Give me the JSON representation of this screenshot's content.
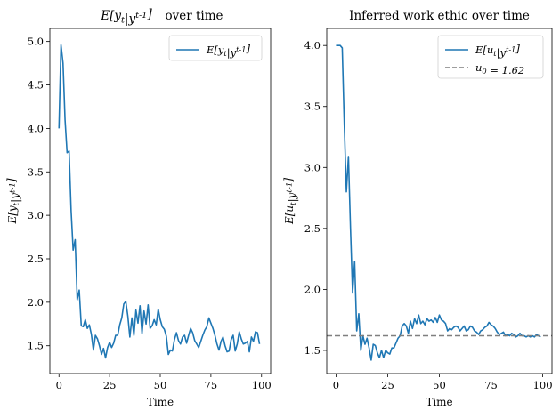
{
  "colors": {
    "series": "#1f77b4",
    "reference": "#7f7f7f",
    "axes": "#000000",
    "legend_edge": "#cccccc"
  },
  "chart_data": [
    {
      "type": "line",
      "title": "E[y_t|y^{t-1}] over time",
      "xlabel": "Time",
      "ylabel": "E[y_t|y^{t-1}]",
      "xlim": [
        -4.5,
        104.5
      ],
      "ylim": [
        1.18,
        5.15
      ],
      "xticks": [
        0,
        25,
        50,
        75,
        100
      ],
      "yticks": [
        1.5,
        2.0,
        2.5,
        3.0,
        3.5,
        4.0,
        4.5,
        5.0
      ],
      "ytick_labels": [
        "1.5",
        "2.0",
        "2.5",
        "3.0",
        "3.5",
        "4.0",
        "4.5",
        "5.0"
      ],
      "legend": "top-right",
      "series": [
        {
          "name": "E[y_t|y^{t-1}]",
          "x": [
            0,
            1,
            2,
            3,
            4,
            5,
            6,
            7,
            8,
            9,
            10,
            11,
            12,
            13,
            14,
            15,
            16,
            17,
            18,
            19,
            20,
            21,
            22,
            23,
            24,
            25,
            26,
            27,
            28,
            29,
            30,
            31,
            32,
            33,
            34,
            35,
            36,
            37,
            38,
            39,
            40,
            41,
            42,
            43,
            44,
            45,
            46,
            47,
            48,
            49,
            50,
            51,
            52,
            53,
            54,
            55,
            56,
            57,
            58,
            59,
            60,
            61,
            62,
            63,
            64,
            65,
            66,
            67,
            68,
            69,
            70,
            71,
            72,
            73,
            74,
            75,
            76,
            77,
            78,
            79,
            80,
            81,
            82,
            83,
            84,
            85,
            86,
            87,
            88,
            89,
            90,
            91,
            92,
            93,
            94,
            95,
            96,
            97,
            98,
            99
          ],
          "values": [
            4.0,
            4.96,
            4.75,
            4.1,
            3.72,
            3.74,
            3.05,
            2.6,
            2.72,
            2.03,
            2.14,
            1.73,
            1.72,
            1.8,
            1.7,
            1.74,
            1.63,
            1.45,
            1.62,
            1.58,
            1.5,
            1.4,
            1.47,
            1.36,
            1.48,
            1.54,
            1.48,
            1.53,
            1.62,
            1.62,
            1.74,
            1.82,
            1.98,
            2.01,
            1.84,
            1.6,
            1.82,
            1.62,
            1.91,
            1.76,
            1.96,
            1.64,
            1.9,
            1.75,
            1.97,
            1.7,
            1.73,
            1.8,
            1.74,
            1.92,
            1.8,
            1.72,
            1.69,
            1.61,
            1.4,
            1.45,
            1.44,
            1.57,
            1.65,
            1.56,
            1.52,
            1.6,
            1.62,
            1.53,
            1.62,
            1.7,
            1.65,
            1.56,
            1.52,
            1.48,
            1.55,
            1.62,
            1.68,
            1.72,
            1.82,
            1.76,
            1.7,
            1.62,
            1.52,
            1.45,
            1.55,
            1.6,
            1.5,
            1.43,
            1.44,
            1.57,
            1.62,
            1.44,
            1.52,
            1.66,
            1.58,
            1.52,
            1.53,
            1.55,
            1.43,
            1.6,
            1.55,
            1.66,
            1.65,
            1.52
          ]
        }
      ]
    },
    {
      "type": "line",
      "title": "Inferred work ethic over time",
      "xlabel": "Time",
      "ylabel": "E[u_t|y^{t-1}]",
      "xlim": [
        -4.5,
        104.5
      ],
      "ylim": [
        1.31,
        4.14
      ],
      "xticks": [
        0,
        25,
        50,
        75,
        100
      ],
      "yticks": [
        1.5,
        2.0,
        2.5,
        3.0,
        3.5,
        4.0
      ],
      "ytick_labels": [
        "1.5",
        "2.0",
        "2.5",
        "3.0",
        "3.5",
        "4.0"
      ],
      "legend": "top-right",
      "series": [
        {
          "name": "E[u_t|y^{t-1}]",
          "x": [
            0,
            1,
            2,
            3,
            4,
            5,
            6,
            7,
            8,
            9,
            10,
            11,
            12,
            13,
            14,
            15,
            16,
            17,
            18,
            19,
            20,
            21,
            22,
            23,
            24,
            25,
            26,
            27,
            28,
            29,
            30,
            31,
            32,
            33,
            34,
            35,
            36,
            37,
            38,
            39,
            40,
            41,
            42,
            43,
            44,
            45,
            46,
            47,
            48,
            49,
            50,
            51,
            52,
            53,
            54,
            55,
            56,
            57,
            58,
            59,
            60,
            61,
            62,
            63,
            64,
            65,
            66,
            67,
            68,
            69,
            70,
            71,
            72,
            73,
            74,
            75,
            76,
            77,
            78,
            79,
            80,
            81,
            82,
            83,
            84,
            85,
            86,
            87,
            88,
            89,
            90,
            91,
            92,
            93,
            94,
            95,
            96,
            97,
            98,
            99
          ],
          "values": [
            4.0,
            4.0,
            4.0,
            3.98,
            3.35,
            2.8,
            3.09,
            2.5,
            1.97,
            2.23,
            1.66,
            1.8,
            1.5,
            1.62,
            1.55,
            1.6,
            1.52,
            1.42,
            1.55,
            1.54,
            1.48,
            1.44,
            1.5,
            1.44,
            1.5,
            1.48,
            1.47,
            1.52,
            1.52,
            1.56,
            1.6,
            1.62,
            1.7,
            1.72,
            1.7,
            1.64,
            1.74,
            1.68,
            1.76,
            1.72,
            1.79,
            1.72,
            1.74,
            1.71,
            1.76,
            1.74,
            1.75,
            1.73,
            1.77,
            1.73,
            1.79,
            1.75,
            1.74,
            1.72,
            1.66,
            1.68,
            1.67,
            1.69,
            1.7,
            1.69,
            1.66,
            1.68,
            1.7,
            1.66,
            1.67,
            1.7,
            1.69,
            1.66,
            1.65,
            1.63,
            1.66,
            1.67,
            1.69,
            1.7,
            1.73,
            1.71,
            1.7,
            1.68,
            1.65,
            1.63,
            1.64,
            1.65,
            1.62,
            1.63,
            1.62,
            1.64,
            1.63,
            1.61,
            1.62,
            1.64,
            1.62,
            1.62,
            1.61,
            1.62,
            1.61,
            1.62,
            1.61,
            1.63,
            1.62,
            1.61
          ]
        },
        {
          "name": "u_0 = 1.62",
          "kind": "hline",
          "y": 1.62
        }
      ]
    }
  ]
}
